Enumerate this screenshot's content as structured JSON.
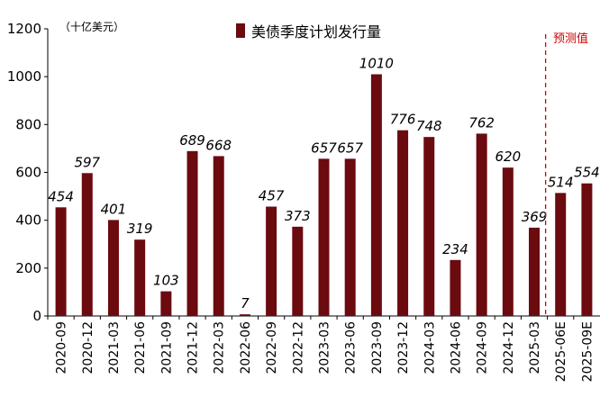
{
  "chart_data": {
    "type": "bar",
    "unit_label": "（十亿美元）",
    "series": [
      {
        "name": "美债季度计划发行量",
        "color": "#6b0a0f",
        "values": [
          454,
          597,
          401,
          319,
          103,
          689,
          668,
          7,
          457,
          373,
          657,
          657,
          1010,
          776,
          748,
          234,
          762,
          620,
          369,
          514,
          554
        ]
      }
    ],
    "categories": [
      "2020-09",
      "2020-12",
      "2021-03",
      "2021-06",
      "2021-09",
      "2021-12",
      "2022-03",
      "2022-06",
      "2022-09",
      "2022-12",
      "2023-03",
      "2023-06",
      "2023-09",
      "2023-12",
      "2024-03",
      "2024-06",
      "2024-09",
      "2024-12",
      "2025-03",
      "2025-06E",
      "2025-09E"
    ],
    "ylim": [
      0,
      1200
    ],
    "yticks": [
      0,
      200,
      400,
      600,
      800,
      1000,
      1200
    ],
    "forecast_label": "预测值",
    "forecast_color": "#cc0000",
    "legend_position": "top-center"
  }
}
